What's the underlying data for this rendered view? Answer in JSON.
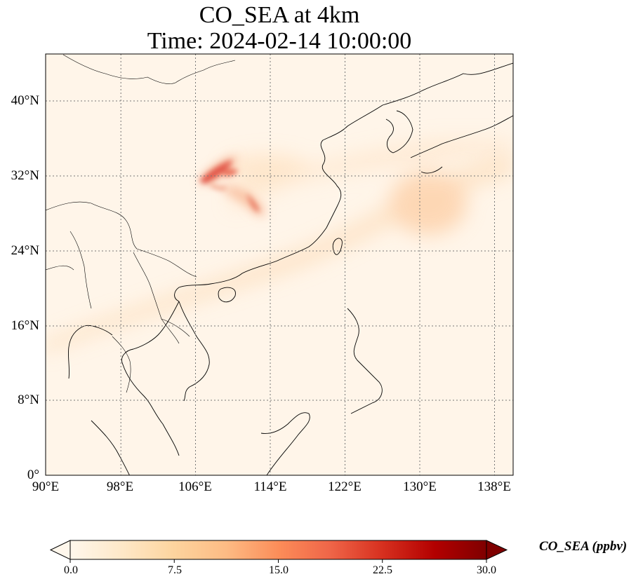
{
  "title": {
    "line1": "CO_SEA at 4km",
    "line2": "Time: 2024-02-14 10:00:00"
  },
  "map": {
    "lon_range": [
      90,
      139
    ],
    "lat_range": [
      0,
      45
    ],
    "lat_labels": [
      "40°N",
      "32°N",
      "24°N",
      "16°N",
      "8°N",
      "0°"
    ],
    "lon_labels": [
      "90°E",
      "98°E",
      "106°E",
      "114°E",
      "122°E",
      "130°E",
      "138°E"
    ],
    "gridlines": "dotted",
    "features": [
      "coastlines",
      "country borders"
    ],
    "plume_description_colors": {
      "low": "#fff7ec",
      "mid": "#fdbb84",
      "high": "#d7301f"
    }
  },
  "colorbar": {
    "label": "CO_SEA (ppbv)",
    "min": 0.0,
    "max": 30.0,
    "ticks": [
      "0.0",
      "7.5",
      "15.0",
      "22.5",
      "30.0"
    ],
    "extend": "both",
    "colormap": "OrRd",
    "stops": [
      "#fff7ec",
      "#fee8c8",
      "#fdd49e",
      "#fdbb84",
      "#fc8d59",
      "#ef6548",
      "#d7301f",
      "#b30000",
      "#7f0000"
    ]
  }
}
